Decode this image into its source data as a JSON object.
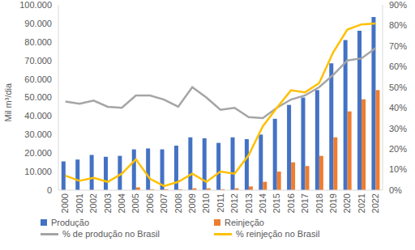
{
  "chart_data": {
    "type": "bar",
    "y_label": "Mil m³/dia",
    "categories": [
      "2000",
      "2001",
      "2002",
      "2003",
      "2004",
      "2005",
      "2006",
      "2007",
      "2008",
      "2009",
      "2010",
      "2011",
      "2012",
      "2013",
      "2014",
      "2015",
      "2016",
      "2017",
      "2018",
      "2019",
      "2020",
      "2021",
      "2022"
    ],
    "series": [
      {
        "name": "Produção",
        "type": "bar",
        "color": "#4472c4",
        "values": [
          15500,
          16500,
          19000,
          18000,
          18500,
          22000,
          22500,
          22000,
          24000,
          28500,
          28000,
          25500,
          28500,
          27500,
          30000,
          38500,
          46000,
          50000,
          54000,
          68500,
          81000,
          86000,
          93500
        ]
      },
      {
        "name": "Reinjeção",
        "type": "bar",
        "color": "#ed7d31",
        "values": [
          0,
          0,
          0,
          0,
          0,
          1500,
          500,
          500,
          500,
          1000,
          1000,
          500,
          1000,
          2000,
          4500,
          10000,
          15000,
          13000,
          18500,
          28500,
          42500,
          49000,
          54000
        ]
      },
      {
        "name": "% de produção no Brasil",
        "type": "line",
        "axis": "y2",
        "color": "#a5a5a5",
        "values": [
          43,
          42,
          43.5,
          40.5,
          40,
          46,
          46,
          44,
          40.5,
          50,
          45,
          39,
          40,
          35.5,
          35,
          40,
          44,
          46,
          50,
          56,
          63,
          64,
          69
        ]
      },
      {
        "name": "% reinjeção no Brasil",
        "type": "line",
        "axis": "y2",
        "color": "#ffc000",
        "values": [
          7,
          4.5,
          6,
          4,
          8,
          15,
          5.5,
          2,
          4,
          8,
          4,
          9,
          8,
          17,
          31,
          40,
          48.5,
          47.5,
          52,
          67,
          78,
          80.5,
          81
        ]
      }
    ],
    "ylim": [
      0,
      100000
    ],
    "yticks": [
      0,
      {
        "value": 10000,
        "label": "10.000"
      },
      {
        "value": 20000,
        "label": "20.000"
      },
      {
        "value": 30000,
        "label": "30.000"
      },
      {
        "value": 40000,
        "label": "40.000"
      },
      {
        "value": 50000,
        "label": "50.000"
      },
      {
        "value": 60000,
        "label": "60.000"
      },
      {
        "value": 70000,
        "label": "70.000"
      },
      {
        "value": 80000,
        "label": "80.000"
      },
      {
        "value": 90000,
        "label": "90.000"
      },
      {
        "value": 100000,
        "label": "100.000"
      }
    ],
    "y2lim": [
      0,
      90
    ],
    "y2ticks": [
      {
        "value": 0,
        "label": "0%"
      },
      {
        "value": 10,
        "label": "10%"
      },
      {
        "value": 20,
        "label": "20%"
      },
      {
        "value": 30,
        "label": "30%"
      },
      {
        "value": 40,
        "label": "40%"
      },
      {
        "value": 50,
        "label": "50%"
      },
      {
        "value": 60,
        "label": "60%"
      },
      {
        "value": 70,
        "label": "70%"
      },
      {
        "value": 80,
        "label": "80%"
      },
      {
        "value": 90,
        "label": "90%"
      }
    ],
    "grid": false,
    "legend": "bottom"
  }
}
